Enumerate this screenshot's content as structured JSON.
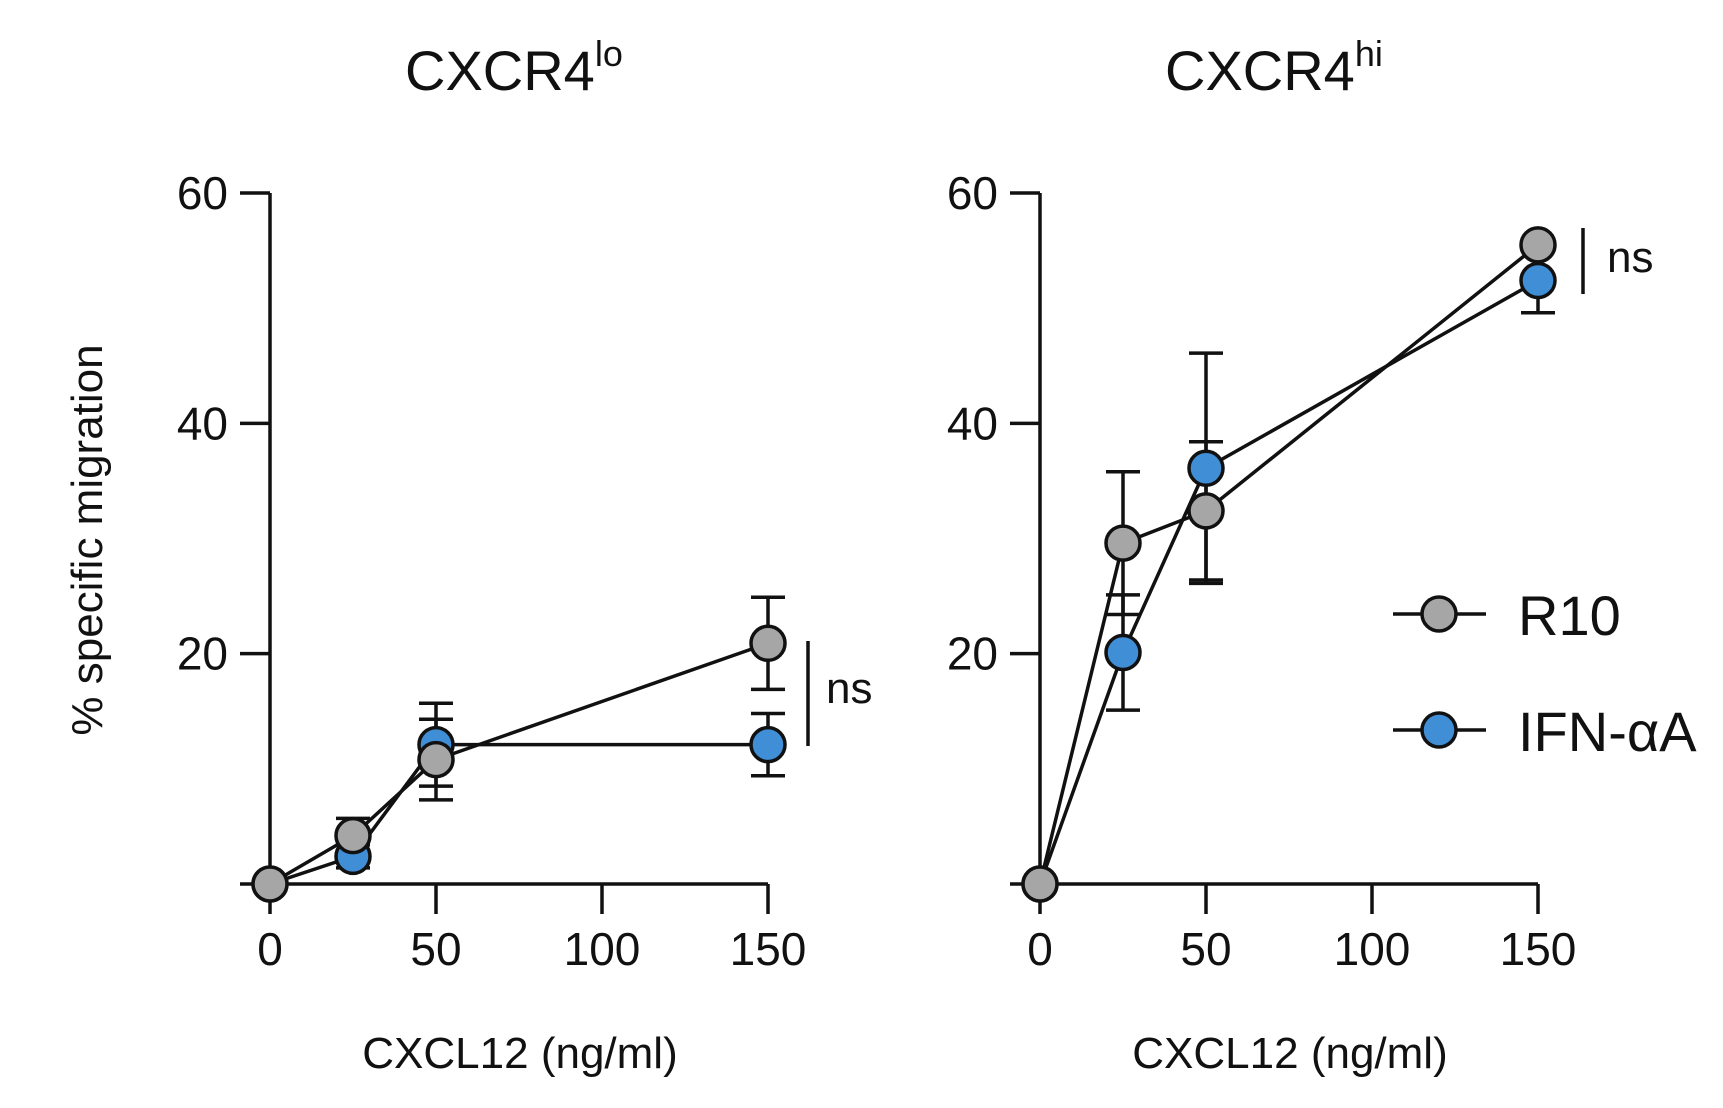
{
  "chart_data": [
    {
      "type": "line",
      "title": "CXCR4",
      "title_superscript": "lo",
      "xlabel": "CXCL12 (ng/ml)",
      "ylabel": "% specific migration",
      "xlim": [
        0,
        150
      ],
      "ylim": [
        0,
        60
      ],
      "xticks": [
        "0",
        "50",
        "100",
        "150"
      ],
      "yticks": [
        "20",
        "40",
        "60"
      ],
      "xtick_values": [
        0,
        50,
        100,
        150
      ],
      "ytick_values": [
        20,
        40,
        60
      ],
      "x": [
        0,
        25,
        50,
        150
      ],
      "series": [
        {
          "name": "R10",
          "color": "#a6a6a6",
          "values": [
            0,
            4.2,
            10.8,
            20.9
          ],
          "error": [
            0,
            1.5,
            3.5,
            4
          ]
        },
        {
          "name": "IFN-αA",
          "color": "#3f8ed6",
          "values": [
            0,
            2.4,
            12.1,
            12.1
          ],
          "error": [
            0,
            1,
            3.6,
            2.7
          ]
        }
      ],
      "grid": false,
      "annotation": {
        "text": "ns"
      }
    },
    {
      "type": "line",
      "title": "CXCR4",
      "title_superscript": "hi",
      "xlabel": "CXCL12 (ng/ml)",
      "ylabel": "",
      "xlim": [
        0,
        150
      ],
      "ylim": [
        0,
        60
      ],
      "xticks": [
        "0",
        "50",
        "100",
        "150"
      ],
      "yticks": [
        "20",
        "40",
        "60"
      ],
      "xtick_values": [
        0,
        50,
        100,
        150
      ],
      "ytick_values": [
        20,
        40,
        60
      ],
      "x": [
        0,
        25,
        50,
        150
      ],
      "series": [
        {
          "name": "R10",
          "color": "#a6a6a6",
          "values": [
            0,
            29.6,
            32.4,
            55.5
          ],
          "error": [
            0,
            6.2,
            6,
            0
          ]
        },
        {
          "name": "IFN-αA",
          "color": "#3f8ed6",
          "values": [
            0,
            20.1,
            36.1,
            52.4
          ],
          "error": [
            0,
            5,
            10,
            2.8
          ]
        }
      ],
      "grid": false,
      "annotation": {
        "text": "ns"
      }
    }
  ],
  "legend": {
    "placement": "right",
    "items": [
      {
        "label": "R10",
        "color": "#a6a6a6"
      },
      {
        "label": "IFN-αA",
        "color": "#3f8ed6"
      }
    ]
  }
}
